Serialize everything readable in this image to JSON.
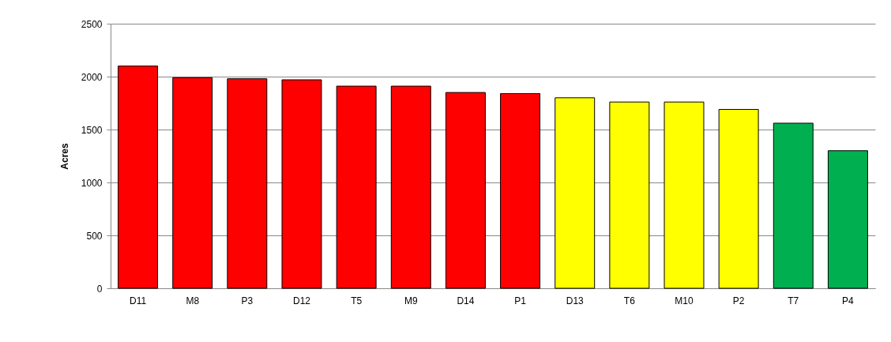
{
  "chart_data": {
    "type": "bar",
    "ylabel": "Acres",
    "categories": [
      "D11",
      "M8",
      "P3",
      "D12",
      "T5",
      "M9",
      "D14",
      "P1",
      "D13",
      "T6",
      "M10",
      "P2",
      "T7",
      "P4"
    ],
    "values": [
      2100,
      1990,
      1980,
      1970,
      1910,
      1910,
      1850,
      1840,
      1800,
      1760,
      1760,
      1690,
      1560,
      1300
    ],
    "colors": [
      "#ff0000",
      "#ff0000",
      "#ff0000",
      "#ff0000",
      "#ff0000",
      "#ff0000",
      "#ff0000",
      "#ff0000",
      "#ffff00",
      "#ffff00",
      "#ffff00",
      "#ffff00",
      "#00b050",
      "#00b050"
    ],
    "ylim": [
      0,
      2500
    ],
    "yticks": [
      0,
      500,
      1000,
      1500,
      2000,
      2500
    ],
    "grid": "y"
  }
}
